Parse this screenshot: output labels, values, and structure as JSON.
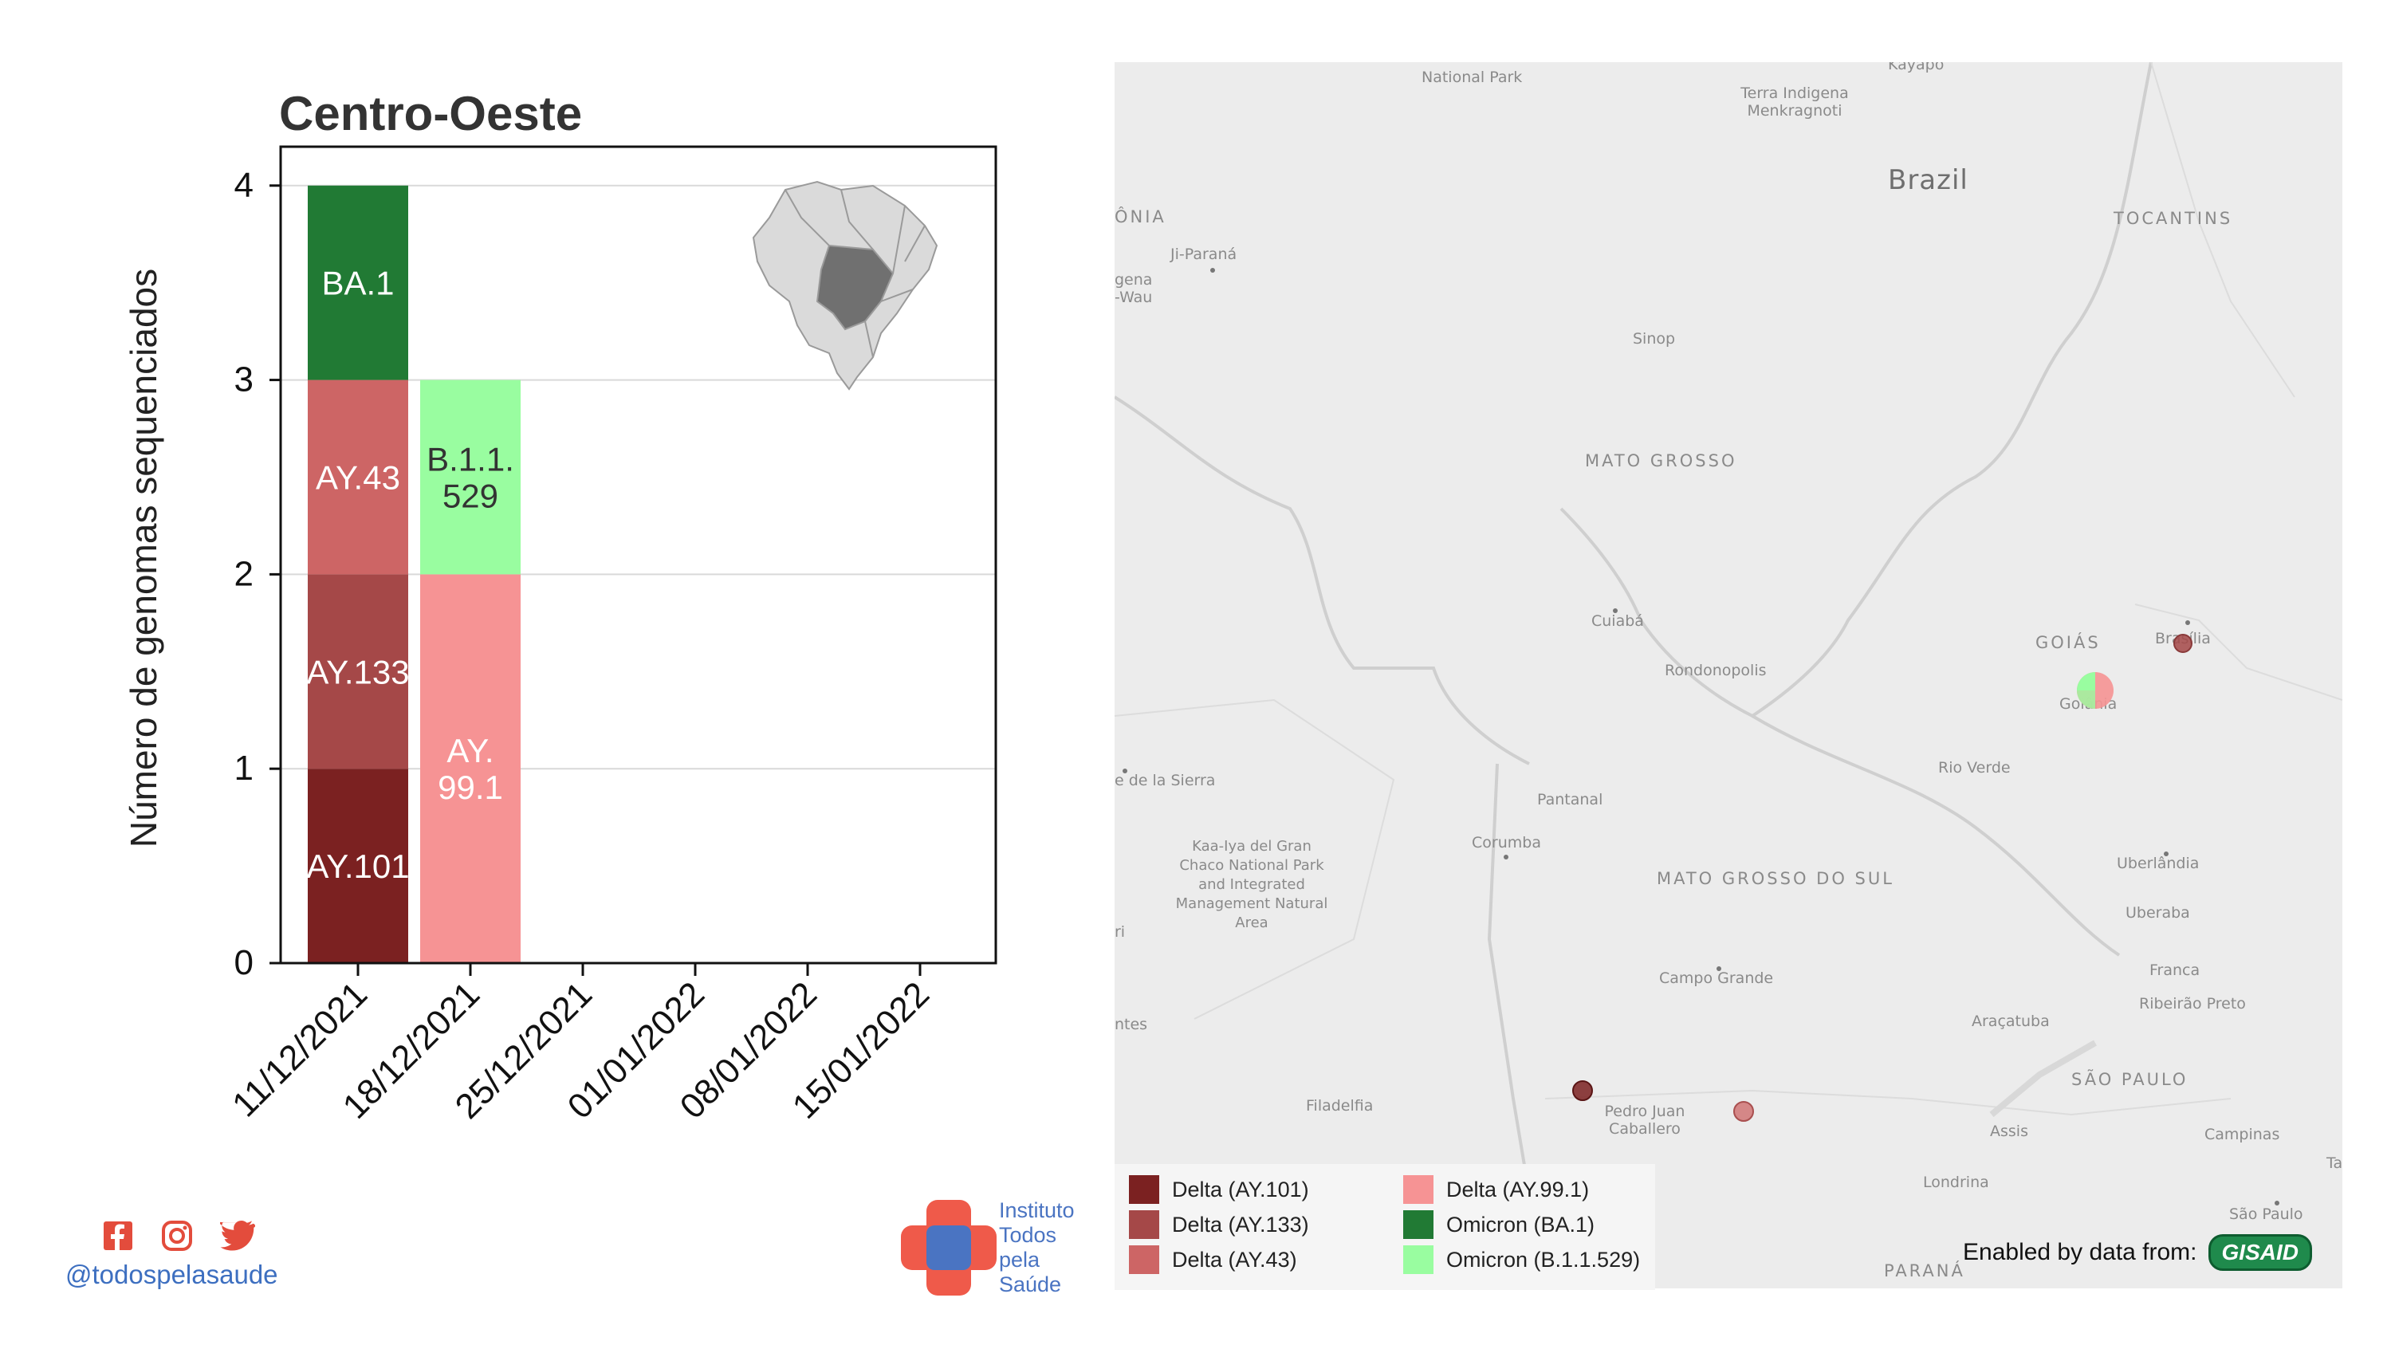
{
  "chart_data": {
    "type": "bar",
    "stacked": true,
    "title": "Centro-Oeste",
    "ylabel": "Número de genomas sequenciados",
    "xlabel": "",
    "ylim": [
      0,
      4.2
    ],
    "yticks": [
      0,
      1,
      2,
      3,
      4
    ],
    "categories": [
      "11/12/2021",
      "18/12/2021",
      "25/12/2021",
      "01/01/2022",
      "08/01/2022",
      "15/01/2022"
    ],
    "series": [
      {
        "name": "Delta (AY.101)",
        "label": "AY.101",
        "color": "#7b2121",
        "text_color": "#ffffff",
        "values": [
          1,
          0,
          0,
          0,
          0,
          0
        ]
      },
      {
        "name": "Delta (AY.133)",
        "label": "AY.133",
        "color": "#a54848",
        "text_color": "#ffffff",
        "values": [
          1,
          0,
          0,
          0,
          0,
          0
        ]
      },
      {
        "name": "Delta (AY.43)",
        "label": "AY.43",
        "color": "#cd6565",
        "text_color": "#ffffff",
        "values": [
          1,
          0,
          0,
          0,
          0,
          0
        ]
      },
      {
        "name": "Delta (AY.99.1)",
        "label": "AY. 99.1",
        "color": "#f69394",
        "text_color": "#ffffff",
        "values": [
          0,
          2,
          0,
          0,
          0,
          0
        ]
      },
      {
        "name": "Omicron (BA.1)",
        "label": "BA.1",
        "color": "#217a34",
        "text_color": "#ffffff",
        "values": [
          1,
          0,
          0,
          0,
          0,
          0
        ]
      },
      {
        "name": "Omicron (B.1.1.529)",
        "label": "B.1.1. 529",
        "color": "#99fda0",
        "text_color": "#333333",
        "values": [
          0,
          1,
          0,
          0,
          0,
          0
        ]
      }
    ],
    "stack_order": [
      [
        "Delta (AY.101)",
        "Delta (AY.133)",
        "Delta (AY.43)",
        "Omicron (BA.1)"
      ],
      [
        "Delta (AY.99.1)",
        "Omicron (B.1.1.529)"
      ]
    ],
    "grid": true
  },
  "map": {
    "country_label": "Brazil",
    "region_labels": [
      "MATO GROSSO",
      "MATO GROSSO DO SUL",
      "GOIÁS",
      "TOCANTINS",
      "SÃO PAULO",
      "PARANÁ",
      "ÔNIA"
    ],
    "place_labels": [
      "National Park",
      "Terra Indigena Menkragnoti",
      "Kayapo",
      "Ji-Paraná",
      "gena -Wau",
      "Sinop",
      "Cuiabá",
      "Rondonopolis",
      "Rio Verde",
      "Goiânia",
      "Brasília",
      "Pantanal",
      "Corumba",
      "Kaa-Iya del Gran Chaco National Park and Integrated Management Natural Area",
      "Campo Grande",
      "Pedro Juan Caballero",
      "Filadelfia",
      "e de la Sierra",
      "Uberlândia",
      "Uberaba",
      "Franca",
      "Ribeirão Preto",
      "Araçatuba",
      "Assis",
      "Londrina",
      "Campinas",
      "São Paulo",
      "ntes",
      "ri",
      "Ta"
    ],
    "markers": [
      {
        "place": "Brasília",
        "lineages": [
          "Delta (AY.133)"
        ],
        "colors": [
          "#a54848"
        ]
      },
      {
        "place": "Goiânia",
        "lineages": [
          "Delta (AY.99.1)",
          "Omicron (B.1.1.529)"
        ],
        "colors": [
          "#f69394",
          "#99fda0"
        ]
      },
      {
        "place": "Pedro Juan Caballero",
        "lineages": [
          "Delta (AY.101)"
        ],
        "colors": [
          "#7b2121"
        ]
      },
      {
        "place": "Mato Grosso do Sul",
        "lineages": [
          "Delta (AY.43)"
        ],
        "colors": [
          "#cd6565"
        ]
      }
    ]
  },
  "legend": {
    "items": [
      {
        "label": "Delta (AY.101)",
        "color": "#7b2121"
      },
      {
        "label": "Delta (AY.133)",
        "color": "#a54848"
      },
      {
        "label": "Delta (AY.43)",
        "color": "#cd6565"
      },
      {
        "label": "Delta (AY.99.1)",
        "color": "#f69394"
      },
      {
        "label": "Omicron (BA.1)",
        "color": "#217a34"
      },
      {
        "label": "Omicron (B.1.1.529)",
        "color": "#99fda0"
      }
    ]
  },
  "credit": {
    "text": "Enabled by data from:",
    "logo": "GISAID"
  },
  "footer": {
    "handle": "@todospelasaude",
    "social_icons": [
      "facebook-icon",
      "instagram-icon",
      "twitter-icon"
    ],
    "org_lines": [
      "Instituto",
      "Todos",
      "pela",
      "Saúde"
    ]
  }
}
